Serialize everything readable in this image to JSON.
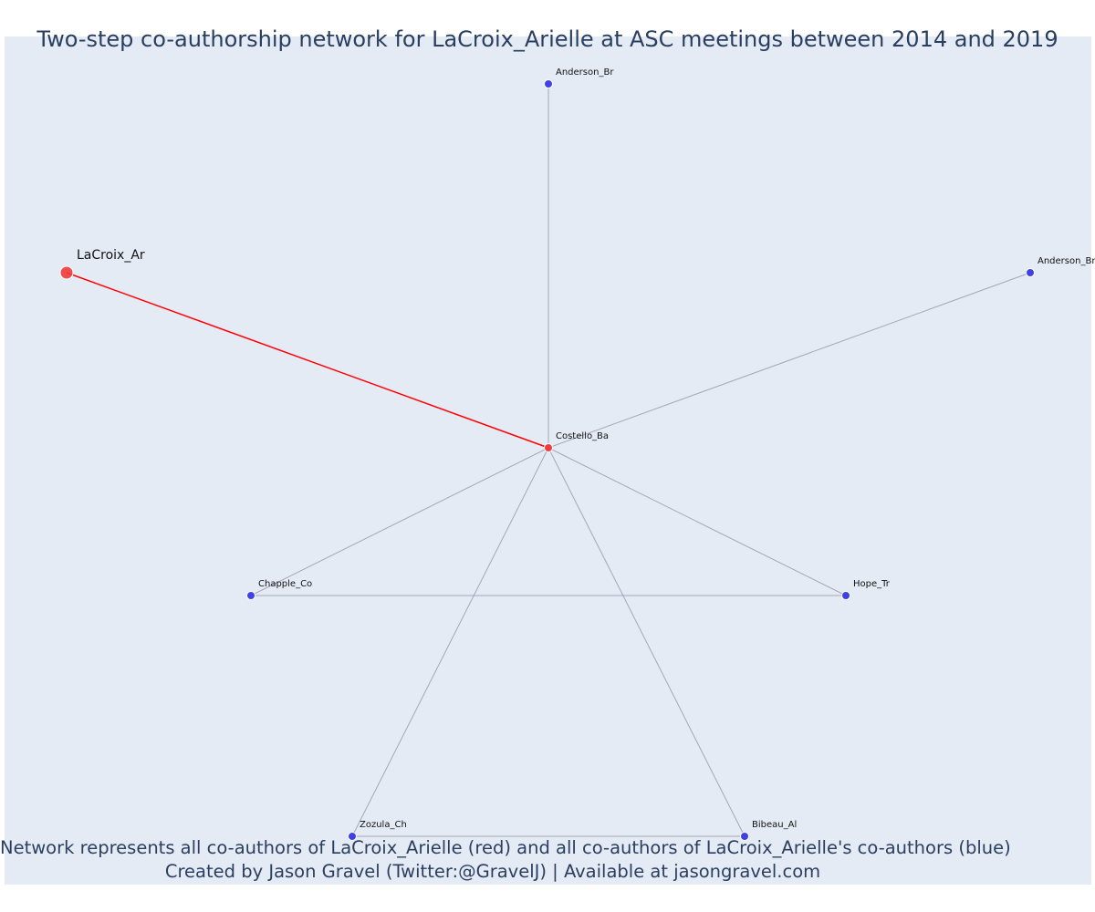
{
  "title": "Two-step co-authorship network for LaCroix_Arielle at ASC meetings between 2014 and 2019",
  "captions": {
    "line1": "Network represents all co-authors of LaCroix_Arielle (red) and all co-authors of LaCroix_Arielle's co-authors (blue)",
    "line2": "Created by Jason Gravel (Twitter:@GravelJ) | Available at jasongravel.com"
  },
  "colors": {
    "background": "#e5ebf5",
    "focal": "#ef3b3b",
    "coauthor": "#ef3b3b",
    "second_step": "#4040e8",
    "focal_edge": "#ff0000",
    "edge": "#9a9aae",
    "text": "#2a3f5f"
  },
  "network": {
    "nodes": [
      {
        "id": "lacroix",
        "label": "LaCroix_Ar",
        "role": "focal"
      },
      {
        "id": "costello",
        "label": "Costello_Ba",
        "role": "coauthor"
      },
      {
        "id": "anderson_top",
        "label": "Anderson_Br",
        "role": "second_step"
      },
      {
        "id": "anderson_right",
        "label": "Anderson_Br",
        "role": "second_step"
      },
      {
        "id": "chapple",
        "label": "Chapple_Co",
        "role": "second_step"
      },
      {
        "id": "hope",
        "label": "Hope_Tr",
        "role": "second_step"
      },
      {
        "id": "zozula",
        "label": "Zozula_Ch",
        "role": "second_step"
      },
      {
        "id": "bibeau",
        "label": "Bibeau_Al",
        "role": "second_step"
      }
    ],
    "edges": [
      {
        "source": "lacroix",
        "target": "costello",
        "type": "focal"
      },
      {
        "source": "costello",
        "target": "anderson_top",
        "type": "other"
      },
      {
        "source": "costello",
        "target": "anderson_right",
        "type": "other"
      },
      {
        "source": "costello",
        "target": "chapple",
        "type": "other"
      },
      {
        "source": "costello",
        "target": "hope",
        "type": "other"
      },
      {
        "source": "costello",
        "target": "zozula",
        "type": "other"
      },
      {
        "source": "costello",
        "target": "bibeau",
        "type": "other"
      },
      {
        "source": "chapple",
        "target": "hope",
        "type": "other"
      },
      {
        "source": "zozula",
        "target": "bibeau",
        "type": "other"
      }
    ]
  }
}
